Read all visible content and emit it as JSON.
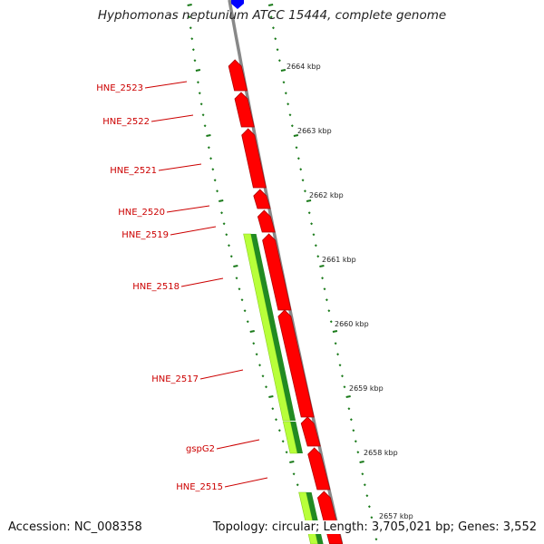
{
  "title": "Hyphomonas neptunium ATCC 15444, complete genome",
  "footer": {
    "accession": "Accession: NC_008358",
    "summary": "Topology: circular; Length: 3,705,021 bp; Genes: 3,552"
  },
  "colors": {
    "forward_gene": "#ff0000",
    "reverse_gene_light": "#b8ff3a",
    "reverse_gene_dark": "#228b22",
    "other_gene": "#0000ff",
    "backbone": "#888888",
    "tick_marks": "#1a7a1a",
    "label_text": "#cc0000"
  },
  "gene_labels": [
    {
      "name": "HNE_2523"
    },
    {
      "name": "HNE_2522"
    },
    {
      "name": "HNE_2521"
    },
    {
      "name": "HNE_2520"
    },
    {
      "name": "HNE_2519"
    },
    {
      "name": "HNE_2518"
    },
    {
      "name": "HNE_2517"
    },
    {
      "name": "gspG2"
    },
    {
      "name": "HNE_2515"
    }
  ],
  "scale_labels": [
    "2664 kbp",
    "2663 kbp",
    "2662 kbp",
    "2661 kbp",
    "2660 kbp",
    "2659 kbp",
    "2658 kbp",
    "2657 kbp"
  ]
}
